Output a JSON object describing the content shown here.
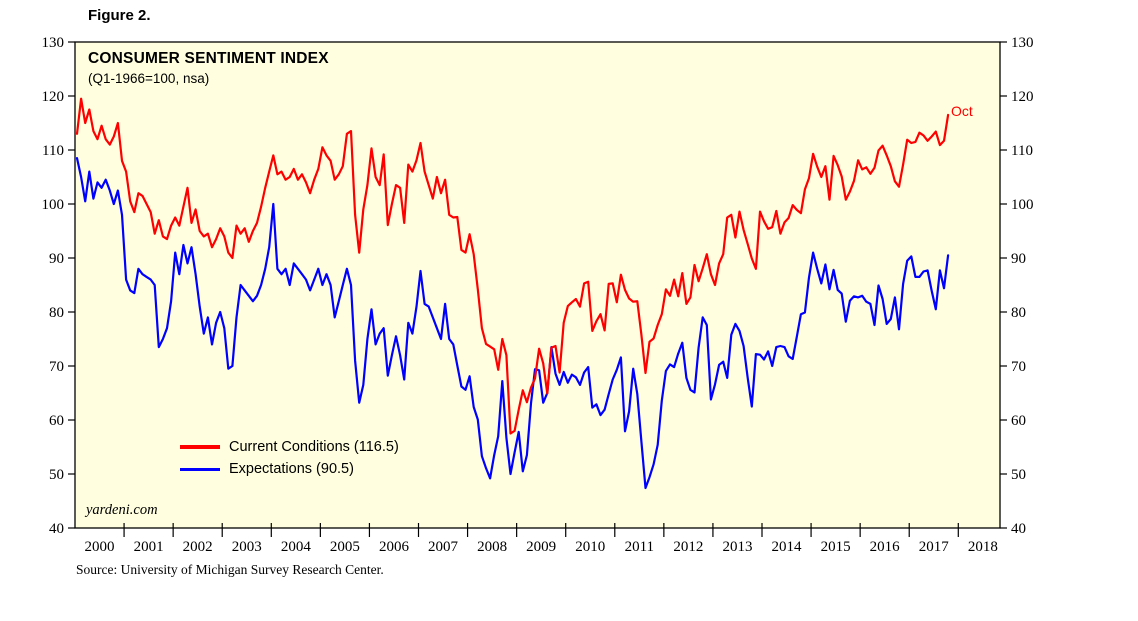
{
  "figure_label": "Figure 2.",
  "source": "Source: University of Michigan Survey Research Center.",
  "watermark": "yardeni.com",
  "annotation": {
    "text": "Oct",
    "color": "#FF0000"
  },
  "style": {
    "plot_background": "#FFFFE0",
    "axis_color": "#000000",
    "text_color": "#000000"
  },
  "legend": {
    "items": [
      {
        "label": "Current Conditions (116.5)",
        "color": "#FF0000"
      },
      {
        "label": "Expectations (90.5)",
        "color": "#0000FF"
      }
    ]
  },
  "chart_data": {
    "type": "line",
    "title": "CONSUMER SENTIMENT INDEX",
    "subtitle": "(Q1-1966=100, nsa)",
    "xlabel": "",
    "ylabel": "",
    "frequency": "monthly",
    "start_year": 2000,
    "start_month": 1,
    "end_label": "Oct 2017",
    "xlim": [
      2000,
      2018.85
    ],
    "ylim": [
      40,
      130
    ],
    "y_ticks": [
      40,
      50,
      60,
      70,
      80,
      90,
      100,
      110,
      120,
      130
    ],
    "x_tick_years": [
      2000,
      2001,
      2002,
      2003,
      2004,
      2005,
      2006,
      2007,
      2008,
      2009,
      2010,
      2011,
      2012,
      2013,
      2014,
      2015,
      2016,
      2017,
      2018
    ],
    "grid": false,
    "legend_position": "inside-lower-left",
    "series": [
      {
        "name": "Current Conditions",
        "color": "#FF0000",
        "latest_value": 116.5,
        "latest_month": "Oct 2017",
        "values": [
          113,
          119.5,
          115,
          117.5,
          113.5,
          112,
          114.5,
          112,
          111,
          112.5,
          115,
          108,
          106,
          100.5,
          98.5,
          102,
          101.5,
          100,
          98.5,
          94.5,
          97,
          94,
          93.5,
          96,
          97.5,
          96,
          99.5,
          103,
          96.5,
          99,
          95,
          94,
          94.5,
          92,
          93.5,
          95.5,
          94,
          91,
          90,
          96,
          94.5,
          95.5,
          93,
          95,
          96.5,
          99.5,
          103,
          106,
          109,
          105.5,
          106,
          104.5,
          105,
          106.5,
          104.5,
          105.5,
          104,
          102,
          104.5,
          106.5,
          110.5,
          109,
          108,
          104.5,
          105.5,
          107,
          113,
          113.5,
          98,
          91,
          99,
          103.5,
          110.3,
          105,
          103.5,
          109.2,
          96.1,
          100,
          103.5,
          103,
          96.5,
          107.3,
          106,
          108.1,
          111.3,
          106,
          103.5,
          101,
          105,
          102,
          104.5,
          98,
          97.5,
          97.6,
          91.5,
          91,
          94.4,
          90.7,
          84.2,
          77,
          74.1,
          73.6,
          73.1,
          69.3,
          75,
          72,
          57.5,
          58,
          61.9,
          65.5,
          63.3,
          66,
          67.7,
          73.2,
          70.5,
          64.9,
          73.4,
          73.7,
          68.8,
          78,
          81.1,
          81.8,
          82.4,
          81,
          85.3,
          85.6,
          76.5,
          78.3,
          79.6,
          76.6,
          85.2,
          85.3,
          81.8,
          86.9,
          84.1,
          82.5,
          81.9,
          82,
          75.8,
          68.7,
          74.5,
          75.1,
          77.6,
          79.6,
          84.2,
          83,
          86,
          82.9,
          87.2,
          81.5,
          82.7,
          88.7,
          85.7,
          88.1,
          90.7,
          87,
          85,
          89,
          90.7,
          97.5,
          98,
          93.8,
          98.6,
          95.2,
          92.6,
          89.9,
          88,
          98.6,
          96.8,
          95.4,
          95.7,
          98.7,
          94.5,
          96.6,
          97.4,
          99.8,
          98.9,
          98.3,
          102.7,
          104.8,
          109.3,
          106.9,
          105,
          107,
          100.8,
          108.9,
          107.2,
          105.1,
          100.8,
          102.3,
          104.3,
          108.1,
          106.4,
          106.8,
          105.6,
          106.7,
          109.9,
          110.8,
          109,
          107,
          104.2,
          103.2,
          107.3,
          111.9,
          111.3,
          111.5,
          113.2,
          112.7,
          111.7,
          112.5,
          113.4,
          110.9,
          111.7,
          116.5
        ]
      },
      {
        "name": "Expectations",
        "color": "#0000FF",
        "latest_value": 90.5,
        "latest_month": "Oct 2017",
        "values": [
          108.5,
          105,
          100.5,
          106,
          101,
          104,
          103,
          104.5,
          102.5,
          100,
          102.5,
          98,
          86,
          84,
          83.5,
          88,
          87,
          86.5,
          86,
          85,
          73.5,
          75,
          77,
          82,
          91,
          87,
          92.4,
          89,
          92,
          87,
          81,
          76,
          79,
          74,
          78,
          80,
          77,
          69.5,
          70,
          79,
          85,
          84,
          83,
          82,
          83,
          85,
          88,
          92,
          100,
          88,
          87,
          88,
          85,
          89,
          88,
          87,
          86,
          84,
          86,
          88,
          85,
          87,
          85,
          79,
          82,
          85,
          88,
          85,
          71,
          63.2,
          66.5,
          75,
          80.5,
          74,
          76,
          77,
          68.2,
          72,
          75.5,
          72,
          67.5,
          78,
          76,
          81,
          87.6,
          81.5,
          81,
          79,
          77,
          75,
          81.5,
          75,
          74,
          70.1,
          66.2,
          65.6,
          68.1,
          62.4,
          60.1,
          53.3,
          51.1,
          49.2,
          53.5,
          57,
          67.2,
          56.7,
          50,
          54,
          57.8,
          50.5,
          53.5,
          63.1,
          69.4,
          69.2,
          63.2,
          65,
          73.5,
          68.6,
          66.5,
          68.9,
          66.9,
          68.4,
          67.9,
          66.5,
          68.8,
          69.8,
          62.3,
          62.9,
          60.9,
          61.9,
          64.8,
          67.5,
          69.3,
          71.6,
          57.9,
          61.6,
          69.5,
          64.8,
          56,
          47.4,
          49.4,
          51.8,
          55.4,
          63.6,
          69.1,
          70.3,
          69.8,
          72.3,
          74.3,
          67.8,
          65.6,
          65.1,
          73.4,
          79,
          77.6,
          63.8,
          66.6,
          70.2,
          70.8,
          67.8,
          75.8,
          77.8,
          76.5,
          73.7,
          67.8,
          62.5,
          72.2,
          72.1,
          71.2,
          72.7,
          70,
          73.5,
          73.7,
          73.5,
          71.8,
          71.3,
          75.4,
          79.6,
          79.9,
          86.4,
          91,
          88,
          85.3,
          88.8,
          84.2,
          87.8,
          84.1,
          83.4,
          78.2,
          82.1,
          82.9,
          82.7,
          83,
          81.9,
          81.5,
          77.6,
          84.9,
          82.4,
          77.8,
          78.7,
          82.7,
          76.8,
          85.2,
          89.5,
          90.3,
          86.5,
          86.5,
          87.5,
          87.7,
          83.9,
          80.5,
          87.7,
          84.4,
          90.5
        ]
      }
    ]
  }
}
